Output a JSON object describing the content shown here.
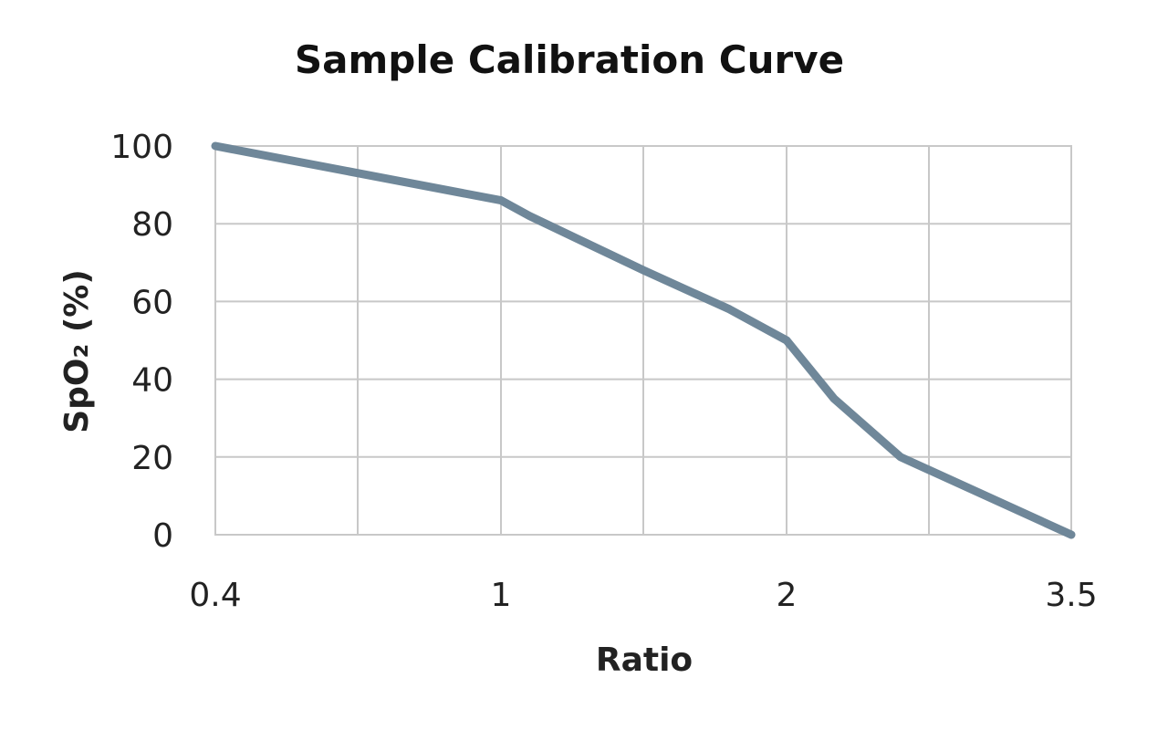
{
  "chart_data": {
    "type": "line",
    "title": "Sample Calibration Curve",
    "xlabel": "Ratio",
    "ylabel": "SpO₂ (%)",
    "x_ticks": [
      "0.4",
      "1",
      "2",
      "3.5"
    ],
    "y_ticks": [
      "0",
      "20",
      "40",
      "60",
      "80",
      "100"
    ],
    "ylim": [
      0,
      100
    ],
    "grid": true,
    "legend": "none",
    "series": [
      {
        "color": "#6f8799",
        "points": [
          {
            "x": 0.4,
            "y": 100
          },
          {
            "x": 0.7,
            "y": 93
          },
          {
            "x": 1.0,
            "y": 86
          },
          {
            "x": 1.1,
            "y": 82
          },
          {
            "x": 1.5,
            "y": 68
          },
          {
            "x": 1.8,
            "y": 58
          },
          {
            "x": 2.0,
            "y": 50
          },
          {
            "x": 2.25,
            "y": 35
          },
          {
            "x": 2.6,
            "y": 20
          },
          {
            "x": 3.5,
            "y": 0
          }
        ]
      }
    ]
  }
}
